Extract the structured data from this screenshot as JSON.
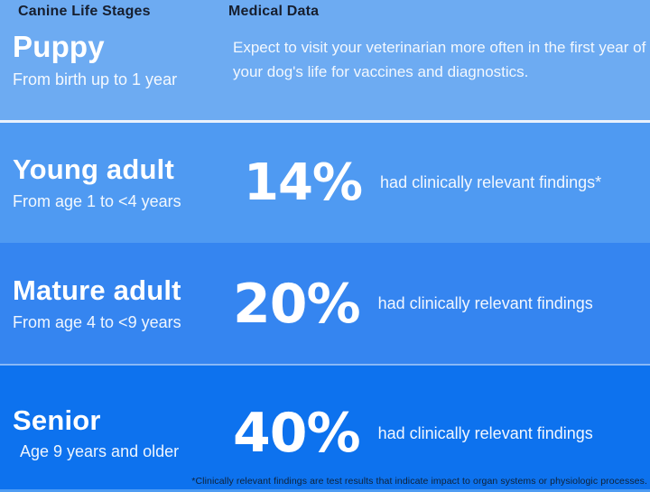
{
  "colors": {
    "row1_bg": "#6dabf2",
    "row2_bg": "#4f9af2",
    "row3_bg": "#3585f0",
    "row4_bg": "#0d72ee",
    "divider_strong": "#e9f1fd",
    "bottom_strip": "#4e9cf3",
    "header_text": "#161e2e",
    "body_text": "#ffffff",
    "footnote_text": "#0e2137"
  },
  "headers": {
    "left": "Canine Life Stages",
    "right": "Medical Data"
  },
  "rows": [
    {
      "stage": "Puppy",
      "age_range": "From birth up to 1 year",
      "description": "Expect to visit your veterinarian more often in the first year of your dog's life for vaccines and diagnostics."
    },
    {
      "stage": "Young adult",
      "age_range": "From age 1 to <4 years",
      "percent": "14%",
      "finding": "had clinically relevant findings*"
    },
    {
      "stage": "Mature adult",
      "age_range": "From age 4 to <9 years",
      "percent": "20%",
      "finding": "had clinically relevant findings"
    },
    {
      "stage": "Senior",
      "age_range": "Age 9 years and older",
      "percent": "40%",
      "finding": "had clinically relevant findings"
    }
  ],
  "footnote": "*Clinically relevant findings are test results that indicate impact to organ systems or physiologic processes.",
  "chart_data": {
    "type": "table",
    "title": "Canine Life Stages — Medical Data",
    "categories": [
      "Puppy",
      "Young adult",
      "Mature adult",
      "Senior"
    ],
    "age_ranges": [
      "From birth up to 1 year",
      "From age 1 to <4 years",
      "From age 4 to <9 years",
      "Age 9 years and older"
    ],
    "series": [
      {
        "name": "had clinically relevant findings (%)",
        "values": [
          null,
          14,
          20,
          40
        ]
      }
    ],
    "annotations": [
      "Expect to visit your veterinarian more often in the first year of your dog's life for vaccines and diagnostics.",
      "*Clinically relevant findings are test results that indicate impact to organ systems or physiologic processes."
    ]
  }
}
